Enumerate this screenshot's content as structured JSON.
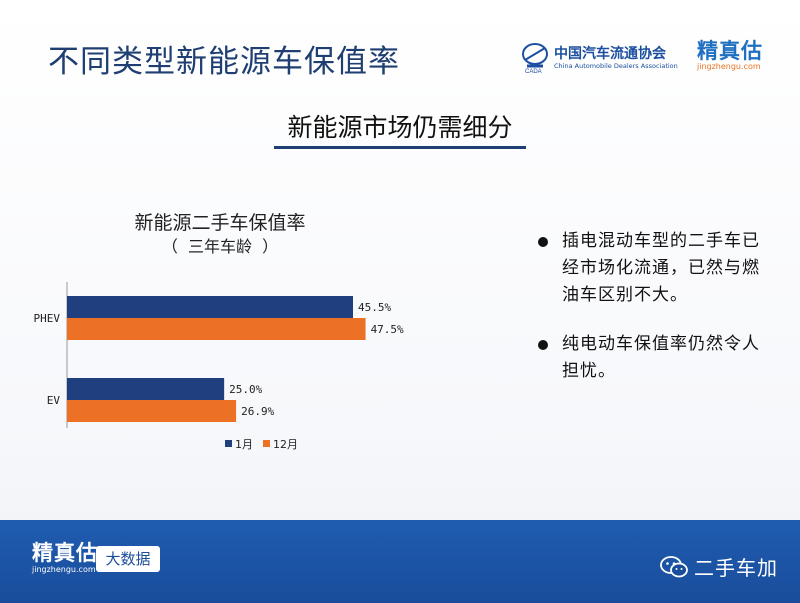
{
  "header": {
    "title": "不同类型新能源车保值率",
    "caada_name": "中国汽车流通协会",
    "caada_en": "China Automobile Dealers Association",
    "jzg_name": "精真估",
    "jzg_url": "jingzhengu.com"
  },
  "subheading": "新能源市场仍需细分",
  "bullets": [
    "插电混动车型的二手车已经市场化流通，已然与燃油车区别不大。",
    "纯电动车保值率仍然令人担忧。"
  ],
  "footer": {
    "brand": "精真估",
    "url": "jingzhengu.com",
    "badge": "大数据",
    "wechat": "二手车加"
  },
  "colors": {
    "title_blue": "#1f3f73",
    "series_jan": "#1f3f7e",
    "series_dec": "#ec7124",
    "footer_blue": "#1a4d9b"
  },
  "chart_data": {
    "type": "bar",
    "orientation": "horizontal",
    "title": "新能源二手车保值率",
    "subtitle": "（  三年车龄  ）",
    "categories": [
      "PHEV",
      "EV"
    ],
    "series": [
      {
        "name": "1月",
        "values": [
          45.5,
          25.0
        ],
        "labels": [
          "45.5%",
          "25.0%"
        ],
        "color": "#1f3f7e"
      },
      {
        "name": "12月",
        "values": [
          47.5,
          26.9
        ],
        "labels": [
          "47.5%",
          "26.9%"
        ],
        "color": "#ec7124"
      }
    ],
    "xlim": [
      0,
      70
    ],
    "legend_position": "bottom",
    "grid": false
  }
}
